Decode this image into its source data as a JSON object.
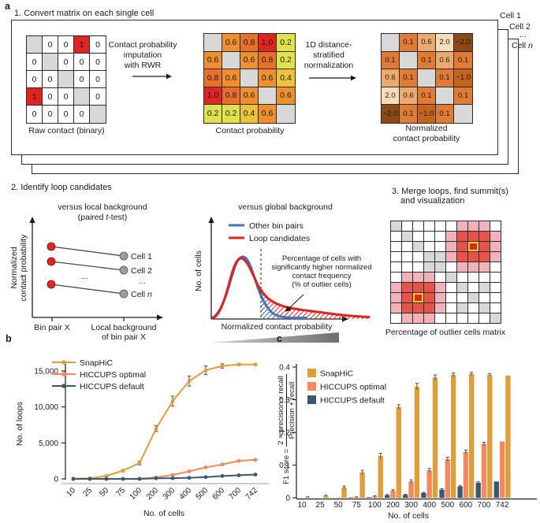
{
  "labels": {
    "a": "a",
    "b": "b",
    "c": "c"
  },
  "panel_a": {
    "step1_title": "1. Convert matrix on each single cell",
    "stack_labels": {
      "cell1": "Cell 1",
      "cell2": "Cell 2",
      "dots": "...",
      "celln_prefix": "Cell ",
      "celln": "n"
    },
    "raw_matrix": {
      "caption": "Raw contact (binary)",
      "values": [
        [
          "",
          "0",
          "0",
          "1",
          "0"
        ],
        [
          "0",
          "",
          "0",
          "0",
          "0"
        ],
        [
          "0",
          "0",
          "",
          "0",
          "0"
        ],
        [
          "1",
          "0",
          "0",
          "",
          "0"
        ],
        [
          "0",
          "0",
          "0",
          "0",
          ""
        ]
      ]
    },
    "arrow1_lines": [
      "Contact probability",
      "imputation",
      "with RWR"
    ],
    "prob_matrix": {
      "caption": "Contact probability",
      "values": [
        [
          "",
          "0.6",
          "0.8",
          "1.0",
          "0.2"
        ],
        [
          "0.6",
          "",
          "0.6",
          "0.8",
          "0.2"
        ],
        [
          "0.8",
          "0.6",
          "",
          "0.6",
          "0.4"
        ],
        [
          "1.0",
          "0.8",
          "0.6",
          "",
          "0.6"
        ],
        [
          "0.2",
          "0.2",
          "0.4",
          "0.6",
          ""
        ]
      ]
    },
    "arrow2_lines": [
      "1D distance-",
      "stratified",
      "normalization"
    ],
    "norm_matrix": {
      "caption_lines": [
        "Normalized",
        "contact probability"
      ],
      "values": [
        [
          "",
          "0.1",
          "0.6",
          "2.0",
          "−2.0"
        ],
        [
          "0.1",
          "",
          "0.1",
          "0.6",
          "0.1"
        ],
        [
          "0.6",
          "0.1",
          "",
          "0.1",
          "−1.0"
        ],
        [
          "2.0",
          "0.6",
          "0.1",
          "",
          "0.1"
        ],
        [
          "−2.0",
          "0.1",
          "−1.0",
          "0.1",
          ""
        ]
      ]
    },
    "colors": {
      "diagonal": "#d8d8d8",
      "raw": {
        "1": "#e02521"
      },
      "prob": {
        "0.2": "#dfe14d",
        "0.4": "#eec33b",
        "0.6": "#ef8f2d",
        "0.8": "#e9702a",
        "1.0": "#e02521"
      },
      "norm": {
        "0.1": "#e07b35",
        "0.6": "#edaa6e",
        "2.0": "#f8ddbd",
        "−1.0": "#c4641f",
        "−2.0": "#8b4a16"
      }
    }
  },
  "panel_2": {
    "title": "2. Identify loop candidates",
    "local": {
      "title_line1": "versus local background",
      "paired_prefix": "(paired ",
      "paired_t": "t",
      "paired_suffix": "-test)",
      "ylabel_line1": "Normalized",
      "ylabel_line2": "contact probability",
      "xtick1": "Bin pair X",
      "xtick2_line1": "Local background",
      "xtick2_line2": "of bin pair X",
      "cell1": "Cell 1",
      "cell2": "Cell 2",
      "dots": "...",
      "celln_prefix": "Cell ",
      "celln": "n",
      "dot_red": "#e02423",
      "dot_gray": "#9b9b9b"
    },
    "global": {
      "title": "versus global background",
      "legend_blue": "Other bin pairs",
      "legend_red": "Loop candidates",
      "ylabel": "No. of cells",
      "xlabel": "Normalized contact probability",
      "annotation_lines": [
        "Percentage of cells with",
        "significantly higher normalized",
        "contact frequency",
        "(% of outlier cells)"
      ],
      "colors": {
        "blue": "#3d79b8",
        "red": "#e02423"
      }
    },
    "merge": {
      "title_line1": "3. Merge loops, find summit(s)",
      "title_line2": "and visualization",
      "caption": "Percentage of outlier cells matrix",
      "grid_rows": [
        "gwwwwwpppw",
        "wgwwwprrrp",
        "wwgwwprsrp",
        "wwwggprrrp",
        "wwwggwpppw",
        "wpppwgwwww",
        "prrrpwgwgw",
        "prsrpwwgww",
        "prrrpwgwgw",
        "wpppwwwwwg"
      ],
      "grid_colors": {
        "w": "#ffffff",
        "g": "#d8d8d8",
        "p": "#f2b2b9",
        "r": "#e4544b",
        "s": "#e02521",
        "summit_ring": "#ffd21f"
      }
    }
  },
  "chart_data": [
    {
      "id": "b",
      "type": "line",
      "title": "",
      "xlabel": "No. of cells",
      "ylabel": "No. of loops",
      "categories": [
        "10",
        "25",
        "50",
        "75",
        "100",
        "200",
        "300",
        "400",
        "500",
        "600",
        "700",
        "742"
      ],
      "ytick_values": [
        0,
        5000,
        10000,
        15000
      ],
      "ytick_labels": [
        "0",
        "5,000",
        "10,000",
        "15,000"
      ],
      "ylim": [
        0,
        16500
      ],
      "series": [
        {
          "name": "SnapHiC",
          "color": "#dd9e3b",
          "values": [
            30,
            80,
            400,
            1150,
            2200,
            7000,
            10800,
            13600,
            15100,
            15700,
            15900,
            15900
          ],
          "errors": [
            30,
            40,
            110,
            170,
            250,
            420,
            700,
            700,
            600,
            300,
            150,
            100
          ]
        },
        {
          "name": "HICCUPS optimal",
          "color": "#f4895f",
          "values": [
            0,
            0,
            0,
            10,
            30,
            200,
            550,
            1050,
            1600,
            2000,
            2500,
            2650
          ],
          "errors": [
            0,
            0,
            0,
            0,
            20,
            40,
            60,
            80,
            90,
            90,
            90,
            80
          ]
        },
        {
          "name": "HICCUPS default",
          "color": "#3a5872",
          "values": [
            0,
            0,
            0,
            0,
            0,
            80,
            100,
            150,
            250,
            400,
            500,
            600
          ],
          "errors": [
            0,
            0,
            0,
            0,
            0,
            20,
            20,
            30,
            30,
            40,
            40,
            40
          ]
        }
      ]
    },
    {
      "id": "c",
      "type": "bar",
      "title": "",
      "xlabel": "No. of cells",
      "ylabel_prefix": "F1 score = ",
      "ylabel_numerator": "2 × precision × recall",
      "ylabel_denominator": "Precision + recall",
      "categories": [
        "10",
        "25",
        "50",
        "75",
        "100",
        "200",
        "300",
        "400",
        "500",
        "600",
        "700",
        "742"
      ],
      "ytick_values": [
        0,
        0.1,
        0.2,
        0.3,
        0.4
      ],
      "ytick_labels": [
        "0",
        "0.1",
        "0.2",
        "0.3",
        "0.4"
      ],
      "ylim": [
        0,
        0.4
      ],
      "bar_draw_order": [
        "HICCUPS default",
        "HICCUPS optimal",
        "SnapHiC"
      ],
      "series": [
        {
          "name": "SnapHiC",
          "color": "#dd9e3b",
          "values": [
            0.002,
            0.006,
            0.032,
            0.078,
            0.128,
            0.278,
            0.34,
            0.368,
            0.376,
            0.379,
            0.376,
            0.374
          ],
          "errors": [
            0.001,
            0.002,
            0.004,
            0.006,
            0.008,
            0.007,
            0.01,
            0.008,
            0.006,
            0.005,
            0.004,
            0
          ]
        },
        {
          "name": "HICCUPS optimal",
          "color": "#f4895f",
          "values": [
            0,
            0,
            0.001,
            0.002,
            0.004,
            0.022,
            0.05,
            0.084,
            0.118,
            0.14,
            0.165,
            0.172
          ],
          "errors": [
            0,
            0,
            0,
            0.001,
            0.002,
            0.003,
            0.005,
            0.006,
            0.006,
            0.006,
            0.005,
            0
          ]
        },
        {
          "name": "HICCUPS default",
          "color": "#3a5872",
          "values": [
            0,
            0,
            0,
            0.001,
            0.002,
            0.008,
            0.009,
            0.015,
            0.025,
            0.035,
            0.046,
            0.05
          ],
          "errors": [
            0,
            0,
            0,
            0,
            0,
            0.002,
            0.002,
            0.002,
            0.003,
            0.003,
            0.003,
            0
          ]
        }
      ]
    }
  ]
}
